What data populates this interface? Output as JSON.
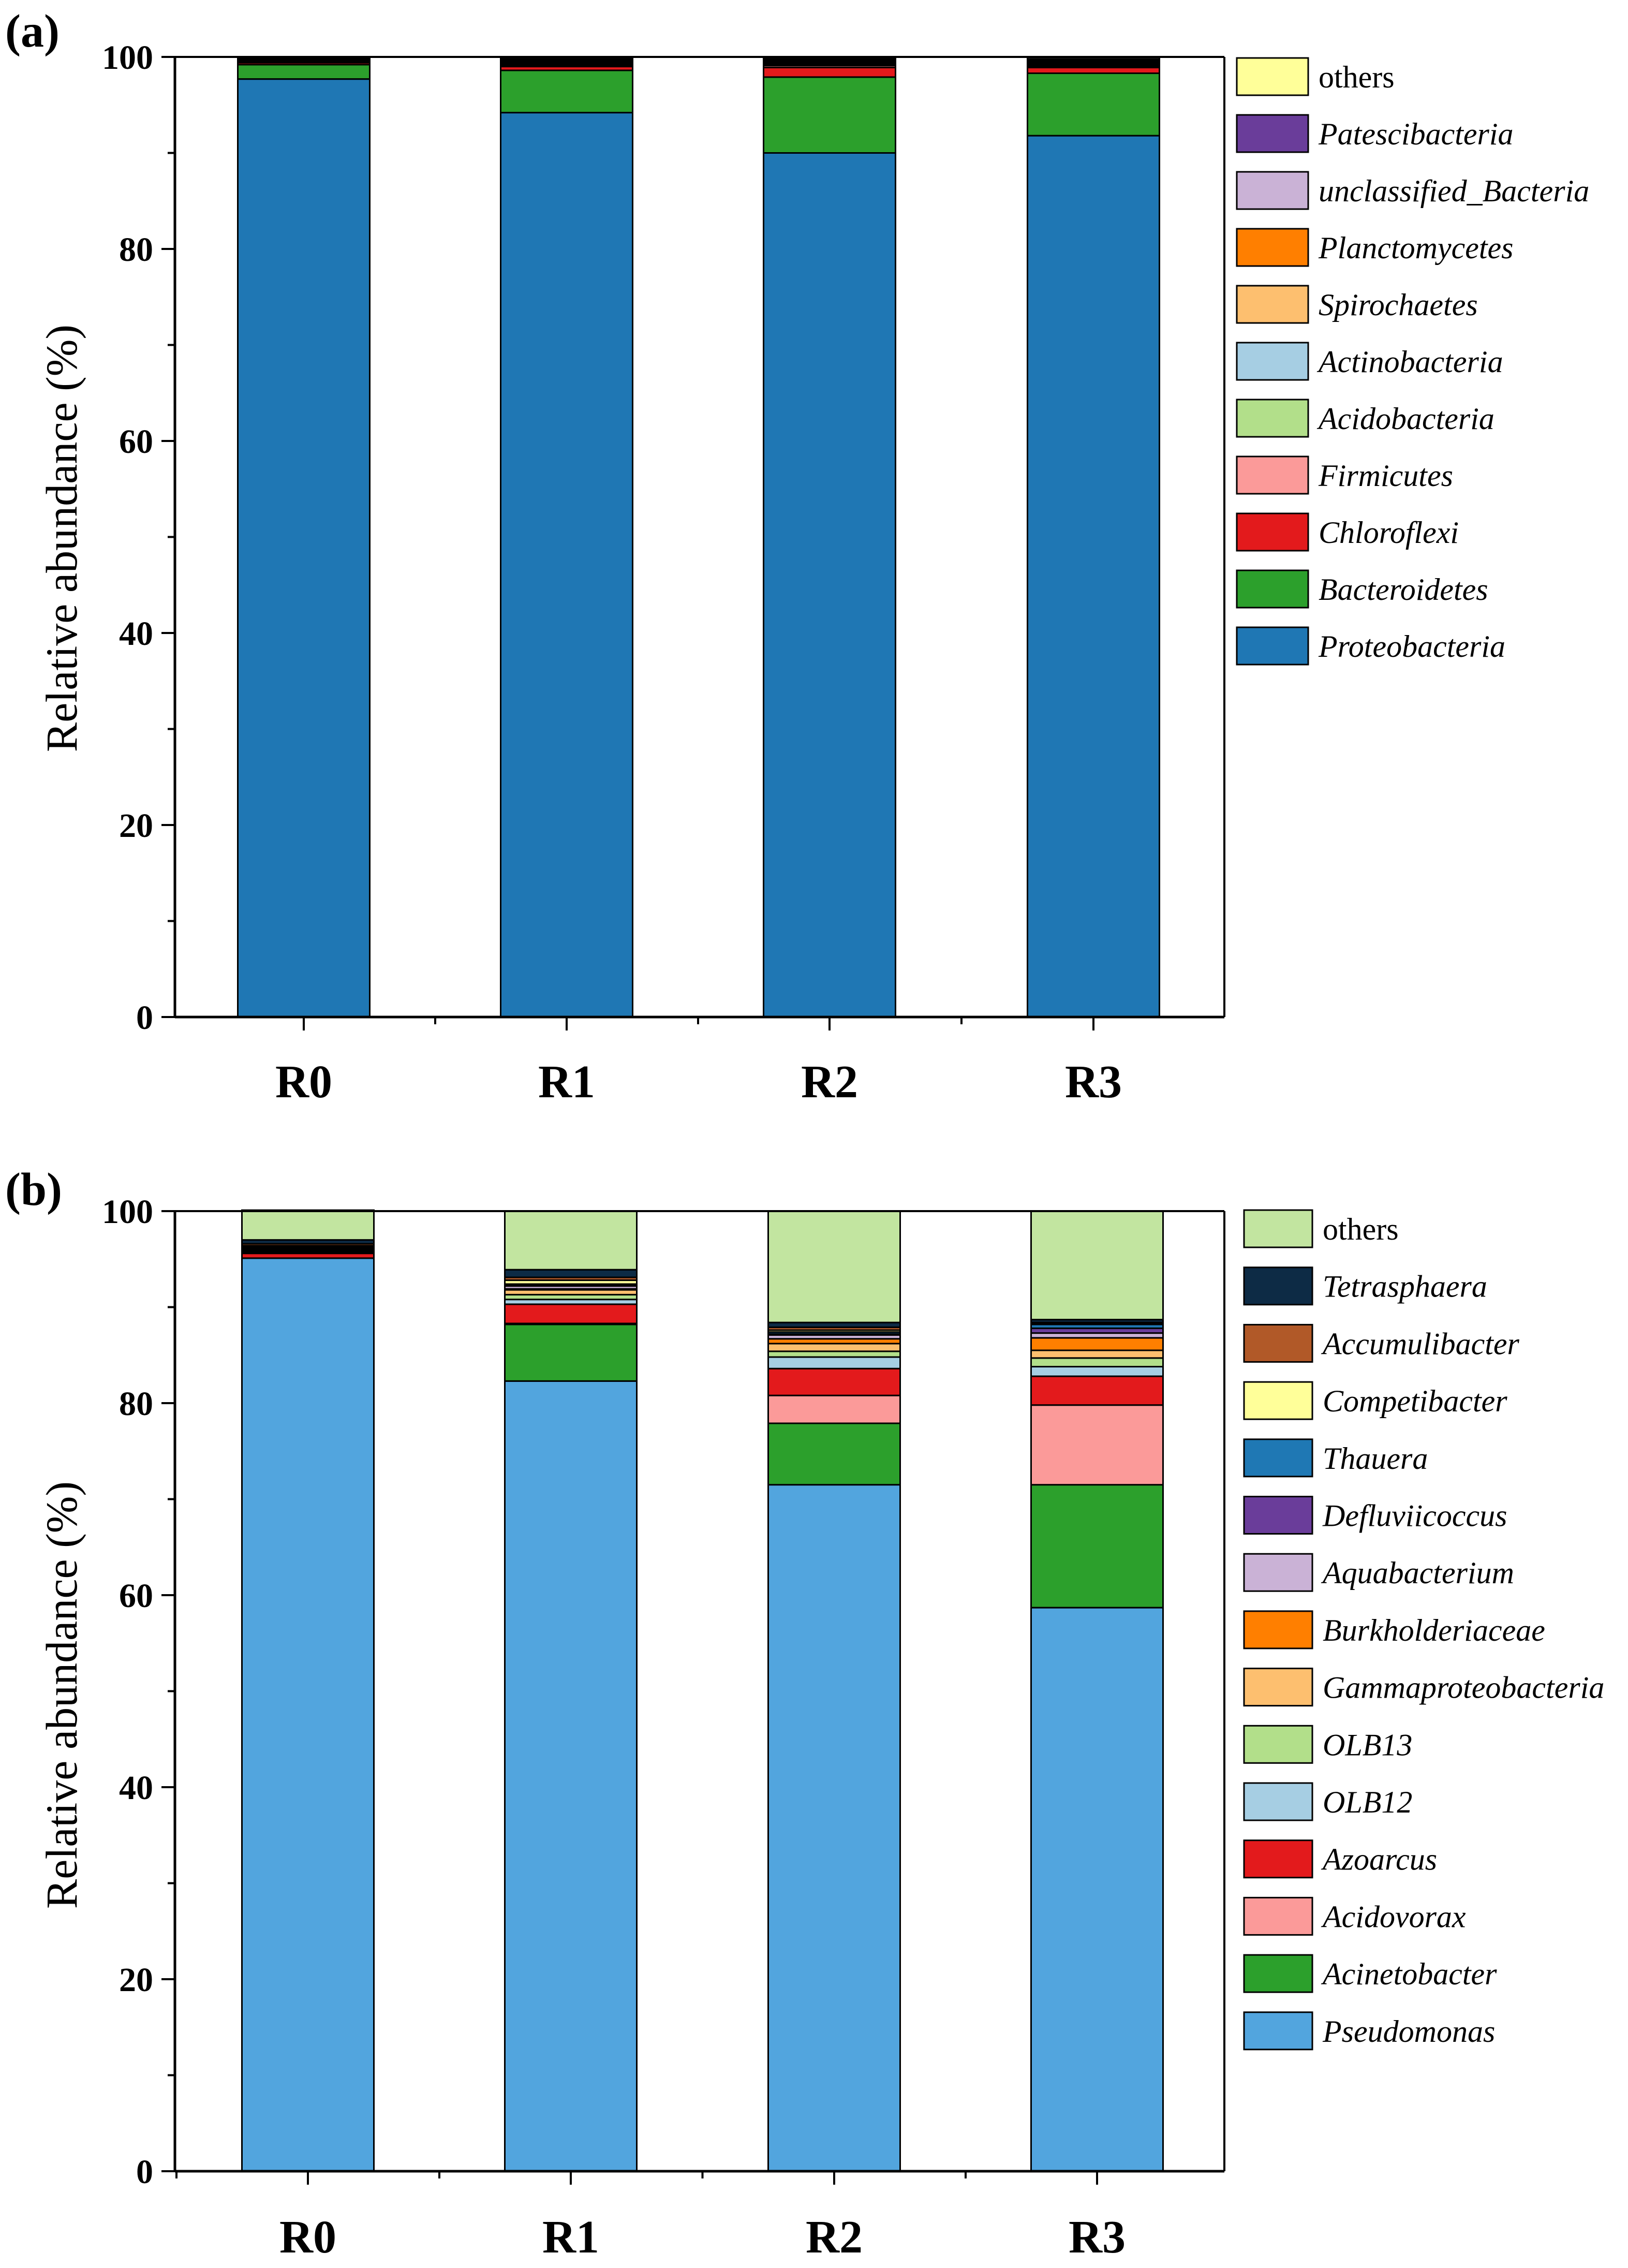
{
  "chart_data": [
    {
      "type": "stacked-bar",
      "panel_label": "(a)",
      "categories": [
        "R0",
        "R1",
        "R2",
        "R3"
      ],
      "ylabel": "Relative abundance (%)",
      "xlabel": "",
      "ylim": [
        0,
        100
      ],
      "yticks": [
        0,
        20,
        40,
        60,
        80,
        100
      ],
      "grid": false,
      "legend_position": "right",
      "series": [
        {
          "name": "Proteobacteria",
          "italic": true,
          "color": "#1f77b4",
          "values": [
            97.7,
            94.2,
            90.0,
            91.8
          ]
        },
        {
          "name": "Bacteroidetes",
          "italic": true,
          "color": "#2ca02c",
          "values": [
            1.5,
            4.4,
            7.9,
            6.5
          ]
        },
        {
          "name": "Chloroflexi",
          "italic": true,
          "color": "#e31a1c",
          "values": [
            0.2,
            0.4,
            1.0,
            0.6
          ]
        },
        {
          "name": "Firmicutes",
          "italic": true,
          "color": "#fb9a99",
          "values": [
            0.1,
            0.1,
            0.2,
            0.1
          ]
        },
        {
          "name": "Acidobacteria",
          "italic": true,
          "color": "#b2df8a",
          "values": [
            0.1,
            0.1,
            0.1,
            0.1
          ]
        },
        {
          "name": "Actinobacteria",
          "italic": true,
          "color": "#a6cee3",
          "values": [
            0.1,
            0.1,
            0.1,
            0.1
          ]
        },
        {
          "name": "Spirochaetes",
          "italic": true,
          "color": "#fdbf6f",
          "values": [
            0.05,
            0.1,
            0.1,
            0.1
          ]
        },
        {
          "name": "Planctomycetes",
          "italic": true,
          "color": "#ff7f00",
          "values": [
            0.05,
            0.1,
            0.1,
            0.1
          ]
        },
        {
          "name": "unclassified_Bacteria",
          "italic": true,
          "color": "#cab2d6",
          "values": [
            0.05,
            0.1,
            0.1,
            0.1
          ]
        },
        {
          "name": "Patescibacteria",
          "italic": true,
          "color": "#6a3d9a",
          "values": [
            0.05,
            0.1,
            0.1,
            0.1
          ]
        },
        {
          "name": "others",
          "italic": false,
          "color": "#ffff99",
          "values": [
            0.05,
            0.1,
            0.1,
            0.1
          ]
        },
        {
          "name": "",
          "italic": false,
          "color": "#111111",
          "values": [
            0.05,
            0.2,
            0.2,
            0.3
          ]
        }
      ]
    },
    {
      "type": "stacked-bar",
      "panel_label": "(b)",
      "categories": [
        "R0",
        "R1",
        "R2",
        "R3"
      ],
      "ylabel": "Relative abundance (%)",
      "xlabel": "",
      "ylim": [
        0,
        100
      ],
      "yticks": [
        0,
        20,
        40,
        60,
        80,
        100
      ],
      "grid": false,
      "legend_position": "right",
      "series": [
        {
          "name": "Pseudomonas",
          "italic": true,
          "color": "#52a5de",
          "values": [
            95.1,
            82.3,
            71.5,
            58.7
          ]
        },
        {
          "name": "Acinetobacter",
          "italic": true,
          "color": "#2ca02c",
          "values": [
            0.0,
            5.9,
            6.4,
            12.8
          ]
        },
        {
          "name": "Acidovorax",
          "italic": true,
          "color": "#fb9a99",
          "values": [
            0.0,
            0.1,
            2.9,
            8.3
          ]
        },
        {
          "name": "Azoarcus",
          "italic": true,
          "color": "#e31a1c",
          "values": [
            0.5,
            2.0,
            2.8,
            3.0
          ]
        },
        {
          "name": "OLB12",
          "italic": true,
          "color": "#a6cee3",
          "values": [
            0.1,
            0.5,
            1.2,
            1.0
          ]
        },
        {
          "name": "OLB13",
          "italic": true,
          "color": "#b2df8a",
          "values": [
            0.1,
            0.5,
            0.6,
            0.9
          ]
        },
        {
          "name": "Gammaproteobacteria",
          "italic": true,
          "color": "#fdbf6f",
          "values": [
            0.1,
            0.5,
            0.8,
            0.8
          ]
        },
        {
          "name": "Burkholderiaceae",
          "italic": true,
          "color": "#ff7f00",
          "values": [
            0.1,
            0.1,
            0.5,
            1.3
          ]
        },
        {
          "name": "Aquabacterium",
          "italic": true,
          "color": "#cab2d6",
          "values": [
            0.1,
            0.3,
            0.4,
            0.5
          ]
        },
        {
          "name": "Defluviicoccus",
          "italic": true,
          "color": "#6a3d9a",
          "values": [
            0.1,
            0.1,
            0.1,
            0.5
          ]
        },
        {
          "name": "Thauera",
          "italic": true,
          "color": "#1f78b4",
          "values": [
            0.1,
            0.1,
            0.2,
            0.4
          ]
        },
        {
          "name": "Competibacter",
          "italic": true,
          "color": "#ffff99",
          "values": [
            0.1,
            0.4,
            0.2,
            0.1
          ]
        },
        {
          "name": "Accumulibacter",
          "italic": true,
          "color": "#b15928",
          "values": [
            0.2,
            0.3,
            0.3,
            0.1
          ]
        },
        {
          "name": "Tetrasphaera",
          "italic": true,
          "color": "#0d2b45",
          "values": [
            0.4,
            0.8,
            0.5,
            0.3
          ]
        },
        {
          "name": "others",
          "italic": false,
          "color": "#c2e5a0",
          "values": [
            3.1,
            6.1,
            11.6,
            11.3
          ]
        }
      ]
    }
  ]
}
